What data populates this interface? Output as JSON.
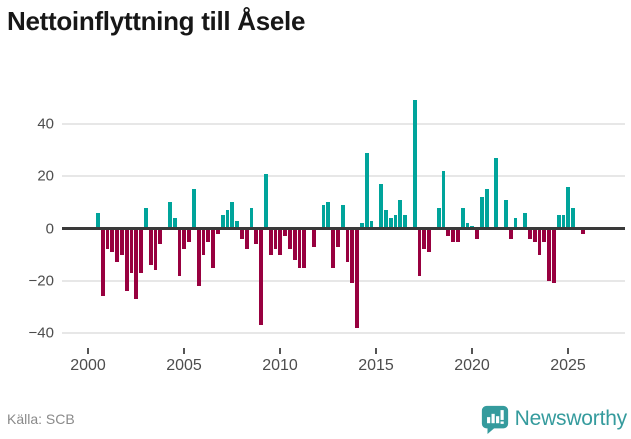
{
  "header": {
    "title": "Nettoinflyttning till Åsele"
  },
  "footer": {
    "source": "Källa: SCB",
    "brand": "Newsworthy"
  },
  "colors": {
    "positive": "#00a49b",
    "negative": "#98003f",
    "grid": "#e7e7e7",
    "zero_line": "#3a3a3a",
    "tick_text": "#4d4d4d",
    "title_text": "#171717",
    "source_text": "#8a8a8a",
    "brand_teal": "#359b9d"
  },
  "chart_data": {
    "type": "bar",
    "title": "Nettoinflyttning till Åsele",
    "frequency": "quarterly",
    "x_start": "2000-Q3",
    "x_end": "2025-Q4",
    "values": [
      6,
      -26,
      -8,
      -9,
      -13,
      -10,
      -24,
      -17,
      -27,
      -17,
      8,
      -14,
      -16,
      -6,
      0,
      10,
      4,
      -18,
      -8,
      -5,
      15,
      -22,
      -10,
      -5,
      -15,
      -2,
      5,
      7,
      10,
      3,
      -4,
      -8,
      8,
      -6,
      -37,
      21,
      -10,
      -8,
      -10,
      -3,
      -8,
      -12,
      -15,
      -15,
      0,
      -7,
      0,
      9,
      10,
      -15,
      -7,
      9,
      -13,
      -21,
      -38,
      2,
      29,
      3,
      0,
      17,
      7,
      4,
      5,
      11,
      5,
      0,
      49,
      -18,
      -8,
      -9,
      0,
      8,
      22,
      -3,
      -5,
      -5,
      8,
      2,
      1,
      -4,
      12,
      15,
      0,
      27,
      0,
      11,
      -4,
      4,
      0,
      6,
      -4,
      -5,
      -10,
      -5,
      -20,
      -21,
      5,
      5,
      16,
      8,
      0,
      -2
    ],
    "yticks": [
      40,
      20,
      0,
      -20,
      -40
    ],
    "xticks": [
      "2000",
      "2005",
      "2010",
      "2015",
      "2020",
      "2025"
    ],
    "ylim": [
      -45,
      52
    ],
    "grid": true,
    "legend": false,
    "xlabel": "",
    "ylabel": ""
  }
}
